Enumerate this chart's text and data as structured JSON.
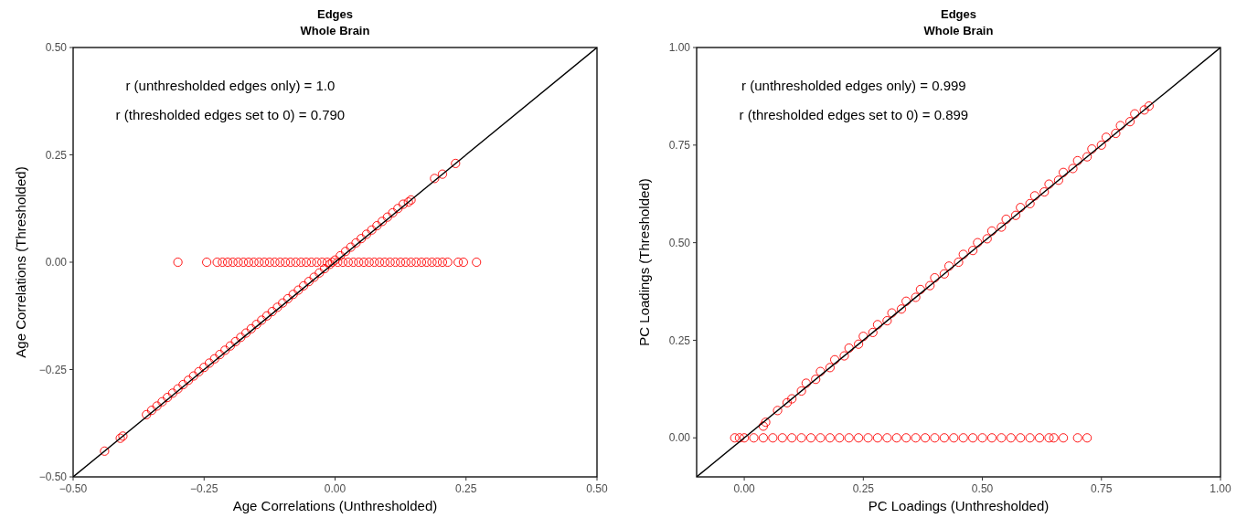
{
  "chart_data": [
    {
      "type": "scatter",
      "title": "Edges",
      "subtitle": "Whole Brain",
      "xlabel": "Age Correlations (Unthresholded)",
      "ylabel": "Age Correlations (Thresholded)",
      "grid": false,
      "annotations": [
        "r (unthresholded edges only) = 1.0",
        "r (thresholded edges set to 0) = 0.790"
      ],
      "xlim": [
        -0.5,
        0.5
      ],
      "ylim": [
        -0.5,
        0.5
      ],
      "xticks": [
        {
          "value": -0.5,
          "label": "−0.50"
        },
        {
          "value": -0.25,
          "label": "−0.25"
        },
        {
          "value": 0,
          "label": "0.00"
        },
        {
          "value": 0.25,
          "label": "0.25"
        },
        {
          "value": 0.5,
          "label": "0.50"
        }
      ],
      "yticks": [
        {
          "value": -0.5,
          "label": "−0.50"
        },
        {
          "value": -0.25,
          "label": "−0.25"
        },
        {
          "value": 0,
          "label": "0.00"
        },
        {
          "value": 0.25,
          "label": "0.25"
        },
        {
          "value": 0.5,
          "label": "0.50"
        }
      ],
      "series": [
        {
          "marker": "circle",
          "color": "#ff0000",
          "x": [
            -0.44,
            -0.41,
            -0.405,
            -0.36,
            -0.35,
            -0.34,
            -0.33,
            -0.32,
            -0.31,
            -0.3,
            -0.29,
            -0.28,
            -0.27,
            -0.26,
            -0.25,
            -0.24,
            -0.23,
            -0.22,
            -0.21,
            -0.2,
            -0.19,
            -0.18,
            -0.17,
            -0.16,
            -0.15,
            -0.14,
            -0.13,
            -0.12,
            -0.11,
            -0.1,
            -0.09,
            -0.08,
            -0.07,
            -0.06,
            -0.05,
            -0.04,
            -0.03,
            -0.02,
            -0.01,
            0,
            0.01,
            0.02,
            0.03,
            0.04,
            0.05,
            0.06,
            0.07,
            0.08,
            0.09,
            0.1,
            0.11,
            0.12,
            0.13,
            0.14,
            0.145,
            0.19,
            0.205,
            0.23
          ],
          "values": [
            -0.44,
            -0.41,
            -0.405,
            -0.355,
            -0.345,
            -0.335,
            -0.325,
            -0.315,
            -0.305,
            -0.295,
            -0.285,
            -0.275,
            -0.265,
            -0.255,
            -0.245,
            -0.235,
            -0.225,
            -0.215,
            -0.205,
            -0.195,
            -0.185,
            -0.175,
            -0.165,
            -0.155,
            -0.145,
            -0.135,
            -0.125,
            -0.115,
            -0.105,
            -0.095,
            -0.085,
            -0.075,
            -0.065,
            -0.055,
            -0.045,
            -0.035,
            -0.025,
            -0.015,
            -0.005,
            0.005,
            0.015,
            0.025,
            0.035,
            0.045,
            0.055,
            0.065,
            0.075,
            0.085,
            0.095,
            0.105,
            0.115,
            0.125,
            0.135,
            0.14,
            0.145,
            0.195,
            0.205,
            0.23
          ]
        },
        {
          "marker": "circle",
          "color": "#ff0000",
          "x": [
            -0.3,
            -0.245,
            -0.225,
            -0.215,
            -0.205,
            -0.195,
            -0.185,
            -0.175,
            -0.165,
            -0.155,
            -0.145,
            -0.135,
            -0.125,
            -0.115,
            -0.105,
            -0.095,
            -0.085,
            -0.075,
            -0.065,
            -0.055,
            -0.045,
            -0.035,
            -0.025,
            -0.015,
            -0.005,
            0.005,
            0.015,
            0.025,
            0.035,
            0.045,
            0.055,
            0.065,
            0.075,
            0.085,
            0.095,
            0.105,
            0.115,
            0.125,
            0.135,
            0.145,
            0.155,
            0.165,
            0.175,
            0.185,
            0.195,
            0.205,
            0.215,
            0.235,
            0.245,
            0.27
          ],
          "values": [
            0,
            0,
            0,
            0,
            0,
            0,
            0,
            0,
            0,
            0,
            0,
            0,
            0,
            0,
            0,
            0,
            0,
            0,
            0,
            0,
            0,
            0,
            0,
            0,
            0,
            0,
            0,
            0,
            0,
            0,
            0,
            0,
            0,
            0,
            0,
            0,
            0,
            0,
            0,
            0,
            0,
            0,
            0,
            0,
            0,
            0,
            0,
            0,
            0,
            0
          ]
        },
        {
          "type": "line",
          "marker": "none",
          "color": "#000000",
          "x": [
            -0.5,
            0.5
          ],
          "values": [
            -0.5,
            0.5
          ]
        }
      ]
    },
    {
      "type": "scatter",
      "title": "Edges",
      "subtitle": "Whole Brain",
      "xlabel": "PC Loadings (Unthresholded)",
      "ylabel": "PC Loadings (Thresholded)",
      "grid": false,
      "annotations": [
        "r (unthresholded edges only) = 0.999",
        "r (thresholded edges set to 0) = 0.899"
      ],
      "xlim": [
        -0.1,
        1
      ],
      "ylim": [
        -0.1,
        1
      ],
      "xticks": [
        {
          "value": 0,
          "label": "0.00"
        },
        {
          "value": 0.25,
          "label": "0.25"
        },
        {
          "value": 0.5,
          "label": "0.50"
        },
        {
          "value": 0.75,
          "label": "0.75"
        },
        {
          "value": 1,
          "label": "1.00"
        }
      ],
      "yticks": [
        {
          "value": 0,
          "label": "0.00"
        },
        {
          "value": 0.25,
          "label": "0.25"
        },
        {
          "value": 0.5,
          "label": "0.50"
        },
        {
          "value": 0.75,
          "label": "0.75"
        },
        {
          "value": 1,
          "label": "1.00"
        }
      ],
      "series": [
        {
          "marker": "circle",
          "color": "#ff0000",
          "x": [
            0.04,
            0.045,
            0.07,
            0.09,
            0.1,
            0.12,
            0.13,
            0.15,
            0.16,
            0.18,
            0.19,
            0.21,
            0.22,
            0.24,
            0.25,
            0.27,
            0.28,
            0.3,
            0.31,
            0.33,
            0.34,
            0.36,
            0.37,
            0.39,
            0.4,
            0.42,
            0.43,
            0.45,
            0.46,
            0.48,
            0.49,
            0.51,
            0.52,
            0.54,
            0.55,
            0.57,
            0.58,
            0.6,
            0.61,
            0.63,
            0.64,
            0.66,
            0.67,
            0.69,
            0.7,
            0.72,
            0.73,
            0.75,
            0.76,
            0.78,
            0.79,
            0.81,
            0.82,
            0.84,
            0.85
          ],
          "values": [
            0.03,
            0.04,
            0.07,
            0.09,
            0.1,
            0.12,
            0.14,
            0.15,
            0.17,
            0.18,
            0.2,
            0.21,
            0.23,
            0.24,
            0.26,
            0.27,
            0.29,
            0.3,
            0.32,
            0.33,
            0.35,
            0.36,
            0.38,
            0.39,
            0.41,
            0.42,
            0.44,
            0.45,
            0.47,
            0.48,
            0.5,
            0.51,
            0.53,
            0.54,
            0.56,
            0.57,
            0.59,
            0.6,
            0.62,
            0.63,
            0.65,
            0.66,
            0.68,
            0.69,
            0.71,
            0.72,
            0.74,
            0.75,
            0.77,
            0.78,
            0.8,
            0.81,
            0.83,
            0.84,
            0.85
          ]
        },
        {
          "marker": "circle",
          "color": "#ff0000",
          "x": [
            -0.02,
            -0.01,
            0,
            0.02,
            0.04,
            0.06,
            0.08,
            0.1,
            0.12,
            0.14,
            0.16,
            0.18,
            0.2,
            0.22,
            0.24,
            0.26,
            0.28,
            0.3,
            0.32,
            0.34,
            0.36,
            0.38,
            0.4,
            0.42,
            0.44,
            0.46,
            0.48,
            0.5,
            0.52,
            0.54,
            0.56,
            0.58,
            0.6,
            0.62,
            0.64,
            0.65,
            0.67,
            0.7,
            0.72
          ],
          "values": [
            0,
            0,
            0,
            0,
            0,
            0,
            0,
            0,
            0,
            0,
            0,
            0,
            0,
            0,
            0,
            0,
            0,
            0,
            0,
            0,
            0,
            0,
            0,
            0,
            0,
            0,
            0,
            0,
            0,
            0,
            0,
            0,
            0,
            0,
            0,
            0,
            0,
            0,
            0
          ]
        },
        {
          "type": "line",
          "marker": "none",
          "color": "#000000",
          "x": [
            -0.1,
            1
          ],
          "values": [
            -0.1,
            1
          ]
        }
      ]
    }
  ]
}
